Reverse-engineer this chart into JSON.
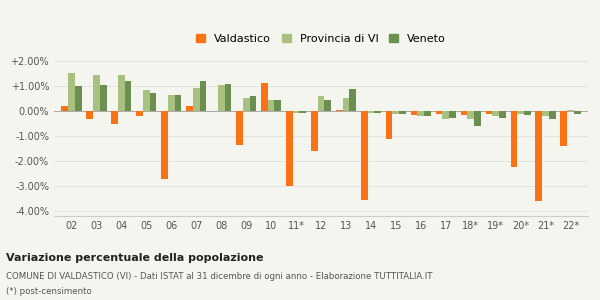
{
  "categories": [
    "02",
    "03",
    "04",
    "05",
    "06",
    "07",
    "08",
    "09",
    "10",
    "11*",
    "12",
    "13",
    "14",
    "15",
    "16",
    "17",
    "18*",
    "19*",
    "20*",
    "21*",
    "22*"
  ],
  "valdastico": [
    0.2,
    -0.3,
    -0.5,
    -0.2,
    -2.7,
    0.2,
    -0.0,
    -1.35,
    1.15,
    -3.0,
    -1.6,
    0.05,
    -3.55,
    -1.1,
    -0.15,
    -0.1,
    -0.15,
    -0.1,
    -2.25,
    -3.6,
    -1.4
  ],
  "provincia_vi": [
    1.55,
    1.45,
    1.45,
    0.85,
    0.65,
    0.95,
    1.05,
    0.55,
    0.45,
    -0.05,
    0.6,
    0.55,
    -0.05,
    -0.1,
    -0.2,
    -0.3,
    -0.3,
    -0.2,
    -0.1,
    -0.2,
    0.05
  ],
  "veneto": [
    1.0,
    1.05,
    1.2,
    0.75,
    0.65,
    1.2,
    1.1,
    0.6,
    0.45,
    -0.05,
    0.45,
    0.9,
    -0.05,
    -0.1,
    -0.2,
    -0.25,
    -0.6,
    -0.25,
    -0.15,
    -0.3,
    -0.1
  ],
  "color_valdastico": "#f97316",
  "color_provincia": "#a8c080",
  "color_veneto": "#6b8f4e",
  "title1": "Variazione percentuale della popolazione",
  "title2": "COMUNE DI VALDASTICO (VI) - Dati ISTAT al 31 dicembre di ogni anno - Elaborazione TUTTITALIA.IT",
  "title3": "(*) post-censimento",
  "legend_labels": [
    "Valdastico",
    "Provincia di VI",
    "Veneto"
  ],
  "ylim": [
    -4.2,
    2.3
  ],
  "yticks": [
    -4.0,
    -3.0,
    -2.0,
    -1.0,
    0.0,
    1.0,
    2.0
  ],
  "ytick_labels": [
    "-4.00%",
    "-3.00%",
    "-2.00%",
    "-1.00%",
    "0.00%",
    "+1.00%",
    "+2.00%"
  ],
  "background_color": "#f5f5f0"
}
